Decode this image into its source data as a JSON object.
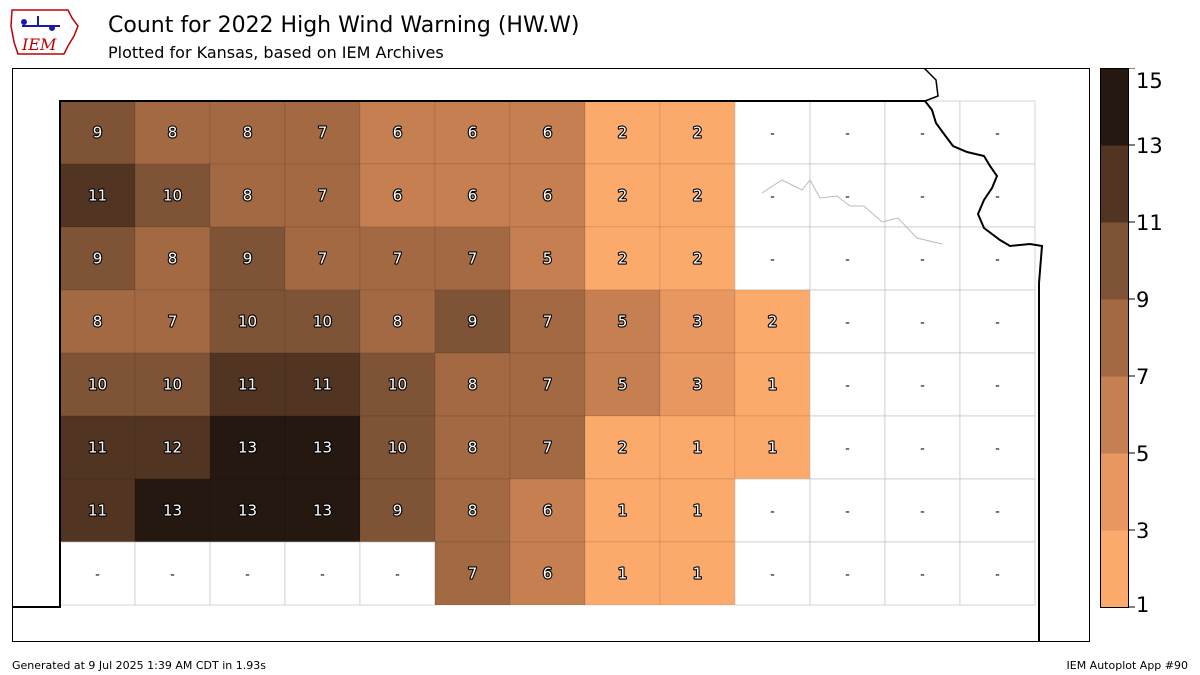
{
  "header": {
    "title": "Count for 2022 High Wind Warning (HW.W)",
    "subtitle": "Plotted for Kansas, based on IEM Archives",
    "logo_text": "IEM"
  },
  "footer": {
    "generated": "Generated at 9 Jul 2025 1:39 AM CDT in 1.93s",
    "app": "IEM Autoplot App #90"
  },
  "legend": {
    "ticks": [
      "1",
      "3",
      "5",
      "7",
      "9",
      "11",
      "13",
      "15"
    ],
    "bins": [
      {
        "min": 1,
        "max": 3,
        "color": "#fca96c"
      },
      {
        "min": 3,
        "max": 5,
        "color": "#e99761"
      },
      {
        "min": 5,
        "max": 7,
        "color": "#c57f51"
      },
      {
        "min": 7,
        "max": 9,
        "color": "#a26943"
      },
      {
        "min": 9,
        "max": 11,
        "color": "#7f5335"
      },
      {
        "min": 11,
        "max": 13,
        "color": "#513522"
      },
      {
        "min": 13,
        "max": 15,
        "color": "#241810"
      }
    ]
  },
  "map": {
    "dash_label": "-",
    "counties": [
      [
        9,
        8,
        8,
        7,
        6,
        6,
        6,
        2,
        2,
        null,
        null,
        null,
        null
      ],
      [
        11,
        10,
        8,
        7,
        6,
        6,
        6,
        2,
        2,
        null,
        null,
        null,
        null
      ],
      [
        9,
        8,
        9,
        7,
        7,
        7,
        5,
        2,
        2,
        null,
        null,
        null,
        null
      ],
      [
        8,
        7,
        10,
        10,
        8,
        9,
        7,
        5,
        3,
        2,
        null,
        null,
        null
      ],
      [
        10,
        10,
        11,
        11,
        10,
        8,
        7,
        5,
        3,
        1,
        null,
        null,
        null
      ],
      [
        11,
        12,
        13,
        13,
        10,
        8,
        7,
        2,
        1,
        1,
        null,
        null,
        null
      ],
      [
        11,
        13,
        13,
        13,
        9,
        8,
        6,
        1,
        1,
        null,
        null,
        null,
        null
      ],
      [
        null,
        null,
        null,
        null,
        null,
        7,
        6,
        1,
        1,
        null,
        null,
        null,
        null
      ]
    ]
  }
}
